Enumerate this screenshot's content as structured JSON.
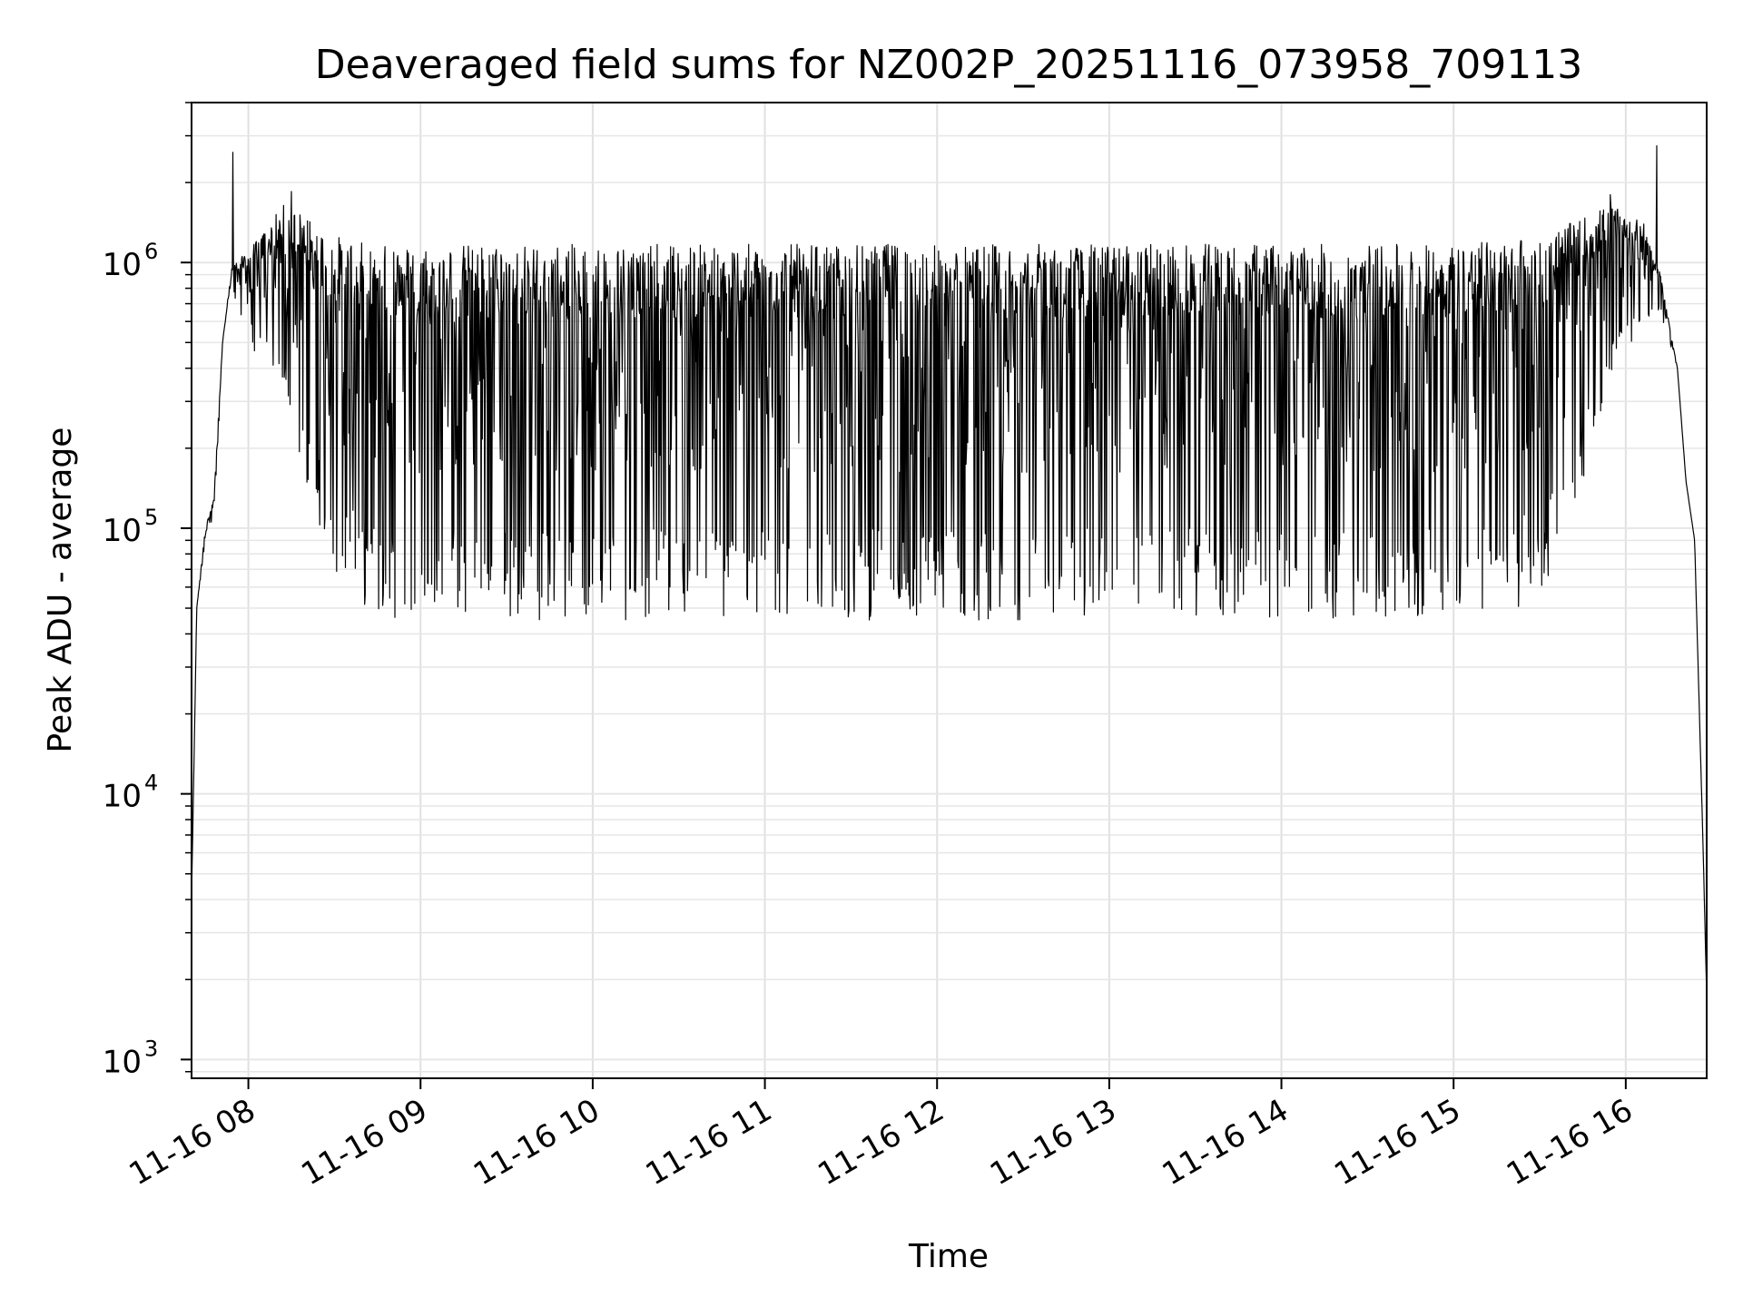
{
  "chart_data": {
    "type": "line",
    "title": "Deaveraged field sums for NZ002P_20251116_073958_709113",
    "xlabel": "Time",
    "ylabel": "Peak ADU - average",
    "yscale": "log",
    "ylim": [
      850,
      4000000
    ],
    "xlim_hours": [
      7.67,
      16.47
    ],
    "grid": true,
    "x_tick_hours": [
      8,
      9,
      10,
      11,
      12,
      13,
      14,
      15,
      16
    ],
    "x_tick_labels": [
      "11-16 08",
      "11-16 09",
      "11-16 10",
      "11-16 11",
      "11-16 12",
      "11-16 13",
      "11-16 14",
      "11-16 15",
      "11-16 16"
    ],
    "y_ticks": [
      {
        "value": 1000,
        "base": "10",
        "exp": "3"
      },
      {
        "value": 10000,
        "base": "10",
        "exp": "4"
      },
      {
        "value": 100000,
        "base": "10",
        "exp": "5"
      },
      {
        "value": 1000000,
        "base": "10",
        "exp": "6"
      }
    ],
    "series_color": "#000000",
    "series": [
      {
        "name": "deaveraged field sum",
        "envelope_hours": [
          7.67,
          7.7,
          7.75,
          7.8,
          7.85,
          7.9,
          8.0,
          8.1,
          8.2,
          8.3,
          8.4,
          8.5,
          8.6,
          8.7,
          8.8,
          9.0,
          10.0,
          11.0,
          12.0,
          13.0,
          14.0,
          15.0,
          15.3,
          15.5,
          15.7,
          15.9,
          16.1,
          16.2,
          16.3,
          16.35,
          16.4,
          16.45,
          16.47
        ],
        "envelope_high": [
          4000,
          50000,
          100000,
          130000,
          500000,
          950000,
          1100000,
          1300000,
          1600000,
          1500000,
          1300000,
          1200000,
          1150000,
          1100000,
          1100000,
          1100000,
          1100000,
          1100000,
          1100000,
          1100000,
          1100000,
          1100000,
          1150000,
          1200000,
          1350000,
          1600000,
          1400000,
          900000,
          400000,
          150000,
          90000,
          6000,
          1700
        ],
        "envelope_low": [
          4000,
          50000,
          90000,
          110000,
          450000,
          800000,
          500000,
          400000,
          300000,
          180000,
          100000,
          70000,
          55000,
          50000,
          46000,
          45000,
          45000,
          45000,
          45000,
          45000,
          45000,
          45000,
          48000,
          55000,
          100000,
          350000,
          600000,
          650000,
          400000,
          150000,
          90000,
          6000,
          1700
        ],
        "spikes": [
          {
            "hour": 7.91,
            "value": 2600000
          },
          {
            "hour": 8.25,
            "value": 1850000
          },
          {
            "hour": 15.91,
            "value": 1800000
          },
          {
            "hour": 16.18,
            "value": 2750000
          }
        ]
      }
    ]
  }
}
